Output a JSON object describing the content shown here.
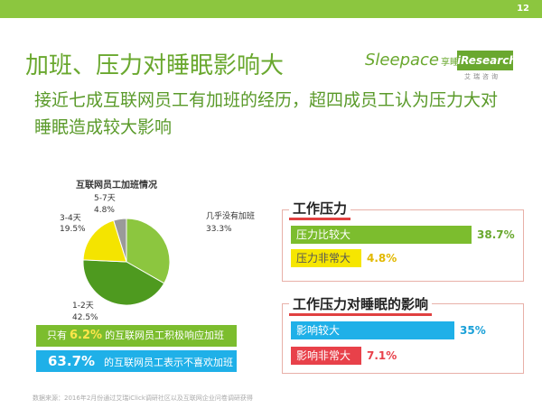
{
  "page_number": "12",
  "title": "加班、压力对睡眠影响大",
  "subtitle": "接近七成互联网员工有加班的经历，超四成员工认为压力大对睡眠造成较大影响",
  "logos": {
    "sleepace": "Sleepace",
    "sleepace_cn": "享睡",
    "iresearch": "iResearch",
    "iresearch_cn": "艾瑞咨询"
  },
  "chart_data": [
    {
      "type": "pie",
      "title": "互联网员工加班情况",
      "labels": [
        "几乎没有加班",
        "1-2天",
        "3-4天",
        "5-7天"
      ],
      "values": [
        33.3,
        42.5,
        19.5,
        4.8
      ],
      "value_labels": [
        "33.3%",
        "42.5%",
        "19.5%",
        "4.8%"
      ],
      "colors": [
        "#8cc63f",
        "#4e9a1f",
        "#f4e400",
        "#9a9a9a"
      ]
    },
    {
      "type": "bar",
      "title": "工作压力",
      "categories": [
        "压力比较大",
        "压力非常大"
      ],
      "values": [
        38.7,
        4.8
      ],
      "value_labels": [
        "38.7%",
        "4.8%"
      ],
      "colors": [
        "#7cbd2e",
        "#f6e600"
      ],
      "label_colors": [
        "#6aa82f",
        "#e2b800"
      ]
    },
    {
      "type": "bar",
      "title": "工作压力对睡眠的影响",
      "categories": [
        "影响较大",
        "影响非常大"
      ],
      "values": [
        35,
        7.1
      ],
      "value_labels": [
        "35%",
        "7.1%"
      ],
      "colors": [
        "#1fb0e8",
        "#e8414a"
      ],
      "label_colors": [
        "#1aa0d8",
        "#e8414a"
      ]
    }
  ],
  "callouts": {
    "c1_prefix": "只有",
    "c1_value": "6.2%",
    "c1_suffix": "的互联网员工积极响应加班",
    "c2_value": "63.7%",
    "c2_suffix": "的互联网员工表示不喜欢加班"
  },
  "source": "数据来源：2016年2月份通过艾瑞iClick调研社区以及互联网企业问卷调研获得"
}
